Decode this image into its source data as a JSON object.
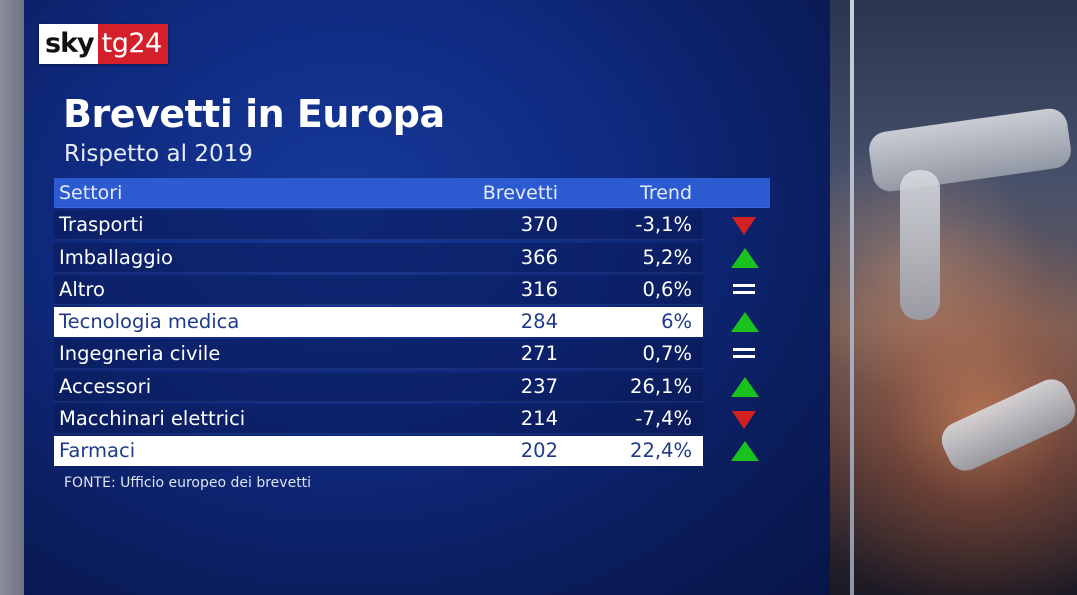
{
  "logo": {
    "sky": "sky",
    "tg": "tg24"
  },
  "title": "Brevetti in Europa",
  "subtitle": "Rispetto al 2019",
  "table": {
    "headers": {
      "settori": "Settori",
      "brevetti": "Brevetti",
      "trend": "Trend"
    },
    "rows": [
      {
        "settore": "Trasporti",
        "brevetti": "370",
        "trend": "-3,1%",
        "icon": "trend-down-icon",
        "highlight": false
      },
      {
        "settore": "Imballaggio",
        "brevetti": "366",
        "trend": "5,2%",
        "icon": "trend-up-icon",
        "highlight": false
      },
      {
        "settore": "Altro",
        "brevetti": "316",
        "trend": "0,6%",
        "icon": "trend-equal-icon",
        "highlight": false
      },
      {
        "settore": "Tecnologia medica",
        "brevetti": "284",
        "trend": "6%",
        "icon": "trend-up-icon",
        "highlight": true
      },
      {
        "settore": "Ingegneria civile",
        "brevetti": "271",
        "trend": "0,7%",
        "icon": "trend-equal-icon",
        "highlight": false
      },
      {
        "settore": "Accessori",
        "brevetti": "237",
        "trend": "26,1%",
        "icon": "trend-up-icon",
        "highlight": false
      },
      {
        "settore": "Macchinari elettrici",
        "brevetti": "214",
        "trend": "-7,4%",
        "icon": "trend-down-icon",
        "highlight": false
      },
      {
        "settore": "Farmaci",
        "brevetti": "202",
        "trend": "22,4%",
        "icon": "trend-up-icon",
        "highlight": true
      }
    ]
  },
  "source": "FONTE: Ufficio europeo dei brevetti",
  "colors": {
    "up": "#19c21f",
    "down": "#d42020",
    "header": "#2c5ad1",
    "highlight_text": "#1e3a8a"
  }
}
